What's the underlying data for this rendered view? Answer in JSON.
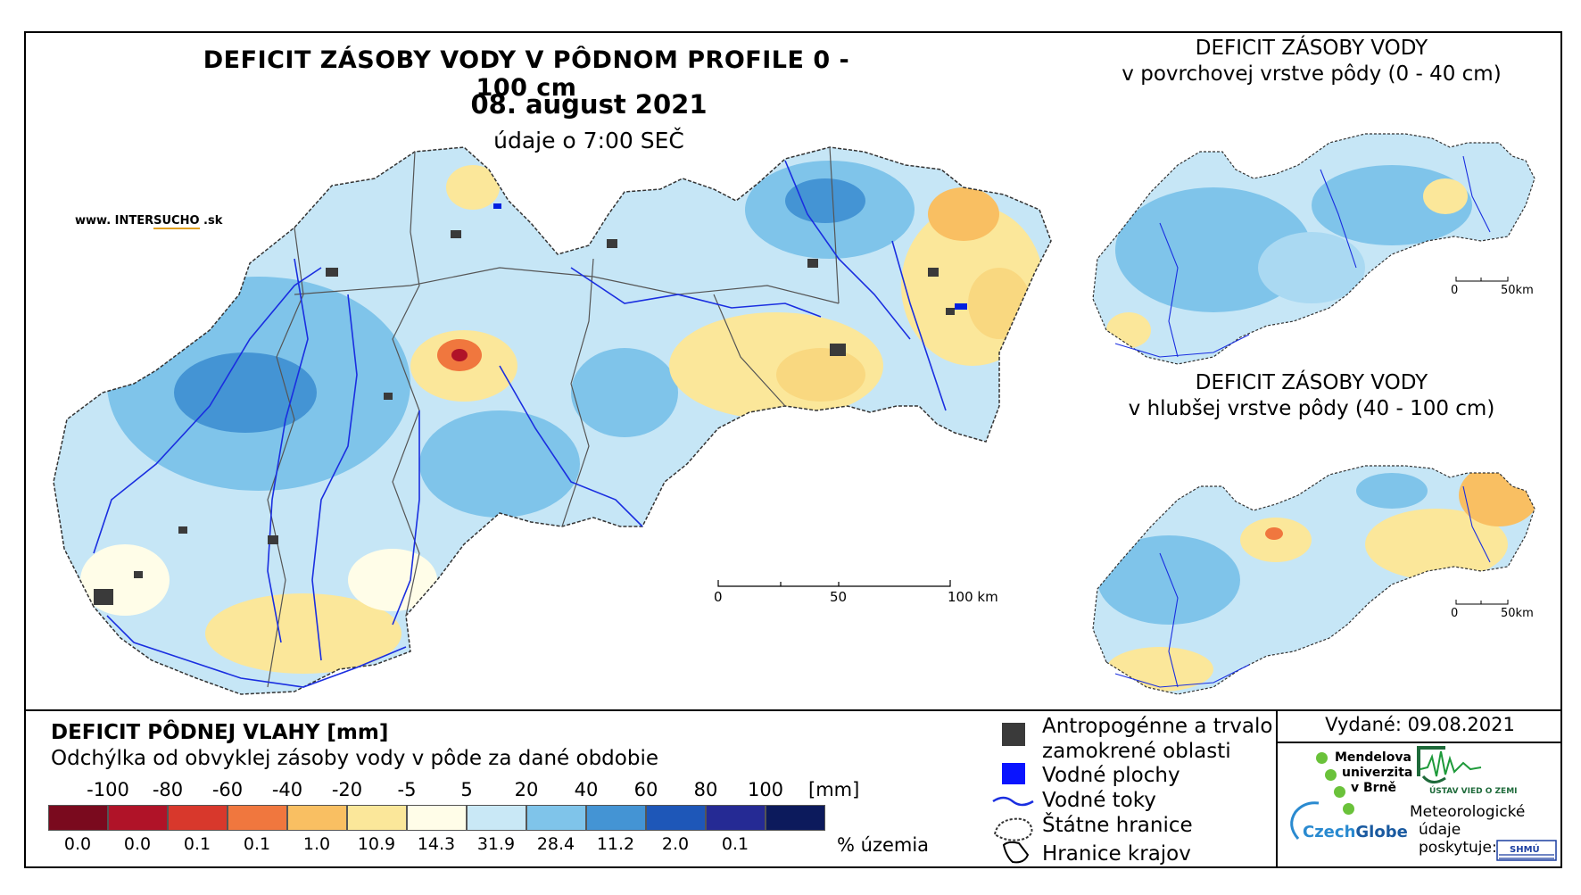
{
  "main_title": "DEFICIT ZÁSOBY VODY V PÔDNOM PROFILE 0 - 100 cm",
  "date": "08. august 2021",
  "time_note": "údaje o 7:00 SEČ",
  "brand": {
    "prefix": "www. INTER",
    "mid": "SUCHO",
    "suffix": " .sk"
  },
  "inset_top": {
    "line1": "DEFICIT ZÁSOBY VODY",
    "line2": "v povrchovej vrstve pôdy (0 - 40 cm)"
  },
  "inset_bottom": {
    "line1": "DEFICIT ZÁSOBY VODY",
    "line2": "v hlubšej vrstve pôdy (40 - 100 cm)"
  },
  "scale_main": {
    "t0": "0",
    "t1": "50",
    "t2": "100 km"
  },
  "scale_inset": {
    "t0": "0",
    "t1": "50km"
  },
  "legend": {
    "title": "DEFICIT PÔDNEJ VLAHY [mm]",
    "subtitle": "Odchýlka od obvyklej zásoby vody v pôde za dané obdobie",
    "ticks": [
      "-100",
      "-80",
      "-60",
      "-40",
      "-20",
      "-5",
      "5",
      "20",
      "40",
      "60",
      "80",
      "100"
    ],
    "unit": "[mm]",
    "colors": [
      "#7a0a1e",
      "#b01328",
      "#d8382c",
      "#f0773e",
      "#f9bf62",
      "#fbe79a",
      "#fffde8",
      "#c9e8f6",
      "#7fc4ea",
      "#4494d4",
      "#1e57b8",
      "#252a94",
      "#0c1a5c"
    ],
    "percentages": [
      "0.0",
      "0.0",
      "0.1",
      "0.1",
      "1.0",
      "10.9",
      "14.3",
      "31.9",
      "28.4",
      "11.2",
      "2.0",
      "0.1"
    ],
    "pct_unit": "% územia"
  },
  "symbols": {
    "anthropogenic_l1": "Antropogénne a trvalo",
    "anthropogenic_l2": "zamokrené oblasti",
    "water_bodies": "Vodné plochy",
    "rivers": "Vodné toky",
    "state_border": "Štátne hranice",
    "regions": "Hranice krajov"
  },
  "issued": "Vydané: 09.08.2021",
  "logos": {
    "mendel_l1": "Mendelova",
    "mendel_l2": "univerzita",
    "mendel_l3": "v Brně",
    "czechglobe_a": "Czech",
    "czechglobe_b": "Globe",
    "uvgz": "ÚSTAV VIED O ZEMI",
    "meteo_l1": "Meteorologické",
    "meteo_l2": "údaje",
    "meteo_l3": "poskytuje:",
    "shmu": "SHMÚ"
  }
}
